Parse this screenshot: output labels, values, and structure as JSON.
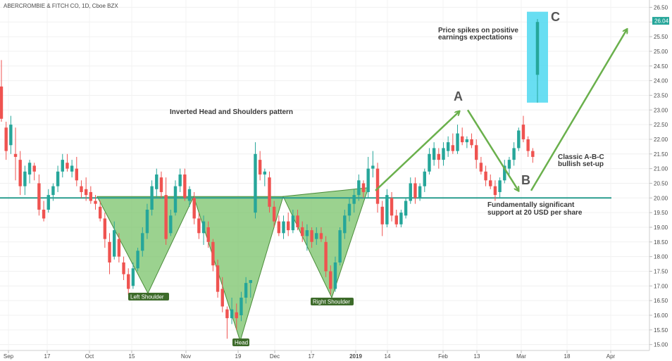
{
  "chart_data": {
    "type": "candlestick",
    "title": "ABERCROMBIE & FITCH CO, 1D, Cboe BZX",
    "y_ticks": [
      15.0,
      15.5,
      16.0,
      16.5,
      17.0,
      17.5,
      18.0,
      18.5,
      19.0,
      19.5,
      20.0,
      20.5,
      21.0,
      21.5,
      22.0,
      22.5,
      23.0,
      23.5,
      24.0,
      24.5,
      25.0,
      25.5,
      26.0,
      26.5
    ],
    "ylim": [
      14.8,
      26.75
    ],
    "current_price": "26.04",
    "x_labels": [
      "Sep",
      "17",
      "Oct",
      "15",
      "Nov",
      "19",
      "Dec",
      "17",
      "2019",
      "14",
      "Feb",
      "13",
      "Mar",
      "18",
      "Apr"
    ],
    "support_level": 20.0,
    "candles": [
      {
        "o": 23.8,
        "h": 24.7,
        "l": 22.6,
        "c": 22.7
      },
      {
        "o": 22.4,
        "h": 22.6,
        "l": 21.3,
        "c": 21.6
      },
      {
        "o": 21.8,
        "h": 22.8,
        "l": 21.5,
        "c": 22.5
      },
      {
        "o": 21.5,
        "h": 22.4,
        "l": 20.6,
        "c": 21.4
      },
      {
        "o": 21.3,
        "h": 21.6,
        "l": 20.1,
        "c": 20.4
      },
      {
        "o": 20.4,
        "h": 21.1,
        "l": 20.1,
        "c": 20.9
      },
      {
        "o": 20.8,
        "h": 21.3,
        "l": 20.5,
        "c": 21.2
      },
      {
        "o": 21.1,
        "h": 21.2,
        "l": 20.6,
        "c": 20.9
      },
      {
        "o": 20.5,
        "h": 20.8,
        "l": 19.4,
        "c": 19.6
      },
      {
        "o": 19.6,
        "h": 19.9,
        "l": 19.2,
        "c": 19.3
      },
      {
        "o": 19.6,
        "h": 20.3,
        "l": 19.5,
        "c": 20.1
      },
      {
        "o": 20.1,
        "h": 20.5,
        "l": 19.9,
        "c": 20.4
      },
      {
        "o": 20.4,
        "h": 21.1,
        "l": 20.2,
        "c": 20.9
      },
      {
        "o": 20.9,
        "h": 21.5,
        "l": 20.7,
        "c": 21.3
      },
      {
        "o": 21.2,
        "h": 21.5,
        "l": 20.9,
        "c": 21.0
      },
      {
        "o": 20.9,
        "h": 21.3,
        "l": 20.7,
        "c": 21.1
      },
      {
        "o": 21.0,
        "h": 21.4,
        "l": 20.4,
        "c": 20.6
      },
      {
        "o": 20.4,
        "h": 20.6,
        "l": 20.0,
        "c": 20.2
      },
      {
        "o": 20.3,
        "h": 20.7,
        "l": 19.9,
        "c": 20.1
      },
      {
        "o": 20.2,
        "h": 20.4,
        "l": 19.8,
        "c": 19.9
      },
      {
        "o": 19.9,
        "h": 20.1,
        "l": 19.6,
        "c": 19.8
      },
      {
        "o": 19.7,
        "h": 19.9,
        "l": 19.2,
        "c": 19.3
      },
      {
        "o": 19.3,
        "h": 19.5,
        "l": 18.3,
        "c": 18.6
      },
      {
        "o": 18.5,
        "h": 18.8,
        "l": 17.4,
        "c": 17.8
      },
      {
        "o": 18.0,
        "h": 19.2,
        "l": 17.9,
        "c": 18.9
      },
      {
        "o": 18.6,
        "h": 18.8,
        "l": 17.8,
        "c": 18.0
      },
      {
        "o": 17.8,
        "h": 18.0,
        "l": 17.2,
        "c": 17.4
      },
      {
        "o": 17.4,
        "h": 17.6,
        "l": 16.7,
        "c": 16.9
      },
      {
        "o": 17.0,
        "h": 17.8,
        "l": 16.9,
        "c": 17.6
      },
      {
        "o": 17.6,
        "h": 18.3,
        "l": 17.5,
        "c": 18.2
      },
      {
        "o": 18.2,
        "h": 19.0,
        "l": 18.0,
        "c": 18.8
      },
      {
        "o": 18.8,
        "h": 19.8,
        "l": 18.6,
        "c": 19.6
      },
      {
        "o": 19.6,
        "h": 20.6,
        "l": 19.4,
        "c": 20.4
      },
      {
        "o": 20.3,
        "h": 21.0,
        "l": 20.0,
        "c": 20.8
      },
      {
        "o": 20.7,
        "h": 20.9,
        "l": 20.0,
        "c": 20.2
      },
      {
        "o": 20.1,
        "h": 20.7,
        "l": 18.4,
        "c": 18.6
      },
      {
        "o": 18.8,
        "h": 19.6,
        "l": 18.7,
        "c": 19.4
      },
      {
        "o": 19.5,
        "h": 20.6,
        "l": 19.4,
        "c": 20.4
      },
      {
        "o": 20.4,
        "h": 21.0,
        "l": 20.2,
        "c": 20.8
      },
      {
        "o": 20.8,
        "h": 21.0,
        "l": 19.9,
        "c": 20.0
      },
      {
        "o": 19.9,
        "h": 20.4,
        "l": 19.7,
        "c": 20.3
      },
      {
        "o": 20.0,
        "h": 20.2,
        "l": 19.1,
        "c": 19.3
      },
      {
        "o": 19.3,
        "h": 19.5,
        "l": 18.6,
        "c": 18.8
      },
      {
        "o": 18.8,
        "h": 19.4,
        "l": 18.4,
        "c": 19.2
      },
      {
        "o": 19.0,
        "h": 19.2,
        "l": 18.3,
        "c": 18.5
      },
      {
        "o": 18.5,
        "h": 18.6,
        "l": 17.5,
        "c": 17.7
      },
      {
        "o": 17.7,
        "h": 17.9,
        "l": 16.6,
        "c": 16.8
      },
      {
        "o": 16.9,
        "h": 17.3,
        "l": 16.1,
        "c": 16.3
      },
      {
        "o": 16.2,
        "h": 16.3,
        "l": 15.2,
        "c": 15.9
      },
      {
        "o": 15.9,
        "h": 16.6,
        "l": 15.7,
        "c": 16.2
      },
      {
        "o": 16.1,
        "h": 16.4,
        "l": 15.5,
        "c": 15.9
      },
      {
        "o": 16.0,
        "h": 16.8,
        "l": 15.8,
        "c": 16.6
      },
      {
        "o": 16.6,
        "h": 17.3,
        "l": 16.4,
        "c": 17.1
      },
      {
        "o": 17.1,
        "h": 17.2,
        "l": 16.6,
        "c": 17.2
      },
      {
        "o": 19.5,
        "h": 21.9,
        "l": 19.3,
        "c": 21.5
      },
      {
        "o": 21.3,
        "h": 21.6,
        "l": 20.6,
        "c": 20.8
      },
      {
        "o": 20.8,
        "h": 21.0,
        "l": 20.4,
        "c": 20.9
      },
      {
        "o": 20.7,
        "h": 20.9,
        "l": 19.5,
        "c": 19.7
      },
      {
        "o": 19.7,
        "h": 19.9,
        "l": 19.0,
        "c": 19.2
      },
      {
        "o": 19.2,
        "h": 19.4,
        "l": 18.7,
        "c": 18.8
      },
      {
        "o": 18.8,
        "h": 19.4,
        "l": 18.6,
        "c": 19.2
      },
      {
        "o": 19.2,
        "h": 19.5,
        "l": 18.7,
        "c": 18.9
      },
      {
        "o": 18.9,
        "h": 19.6,
        "l": 18.8,
        "c": 19.4
      },
      {
        "o": 19.4,
        "h": 19.6,
        "l": 18.9,
        "c": 19.0
      },
      {
        "o": 19.0,
        "h": 19.2,
        "l": 18.5,
        "c": 18.7
      },
      {
        "o": 18.7,
        "h": 19.1,
        "l": 18.2,
        "c": 18.9
      },
      {
        "o": 18.9,
        "h": 19.0,
        "l": 18.3,
        "c": 18.5
      },
      {
        "o": 18.6,
        "h": 19.0,
        "l": 18.4,
        "c": 18.8
      },
      {
        "o": 18.8,
        "h": 19.0,
        "l": 18.5,
        "c": 18.6
      },
      {
        "o": 18.5,
        "h": 18.7,
        "l": 17.3,
        "c": 17.5
      },
      {
        "o": 17.5,
        "h": 17.7,
        "l": 16.7,
        "c": 16.9
      },
      {
        "o": 16.9,
        "h": 18.0,
        "l": 16.8,
        "c": 17.8
      },
      {
        "o": 17.8,
        "h": 19.0,
        "l": 17.7,
        "c": 18.9
      },
      {
        "o": 18.8,
        "h": 19.6,
        "l": 18.6,
        "c": 19.4
      },
      {
        "o": 19.4,
        "h": 20.0,
        "l": 19.2,
        "c": 19.8
      },
      {
        "o": 19.8,
        "h": 20.3,
        "l": 19.5,
        "c": 20.1
      },
      {
        "o": 20.1,
        "h": 20.8,
        "l": 19.9,
        "c": 20.6
      },
      {
        "o": 20.5,
        "h": 20.6,
        "l": 20.0,
        "c": 20.2
      },
      {
        "o": 20.2,
        "h": 21.4,
        "l": 20.0,
        "c": 21.0
      },
      {
        "o": 21.0,
        "h": 21.6,
        "l": 20.7,
        "c": 21.1
      },
      {
        "o": 21.0,
        "h": 21.2,
        "l": 19.5,
        "c": 19.8
      },
      {
        "o": 19.7,
        "h": 19.9,
        "l": 18.7,
        "c": 19.1
      },
      {
        "o": 19.1,
        "h": 20.3,
        "l": 19.0,
        "c": 20.1
      },
      {
        "o": 20.0,
        "h": 20.2,
        "l": 19.2,
        "c": 19.4
      },
      {
        "o": 19.4,
        "h": 19.6,
        "l": 19.0,
        "c": 19.1
      },
      {
        "o": 19.1,
        "h": 19.6,
        "l": 19.0,
        "c": 19.5
      },
      {
        "o": 19.4,
        "h": 20.0,
        "l": 19.3,
        "c": 19.9
      },
      {
        "o": 19.9,
        "h": 20.7,
        "l": 19.8,
        "c": 20.5
      },
      {
        "o": 20.5,
        "h": 20.7,
        "l": 19.8,
        "c": 20.0
      },
      {
        "o": 20.0,
        "h": 20.5,
        "l": 19.9,
        "c": 20.4
      },
      {
        "o": 20.4,
        "h": 21.0,
        "l": 20.2,
        "c": 20.9
      },
      {
        "o": 20.9,
        "h": 21.7,
        "l": 20.8,
        "c": 21.5
      },
      {
        "o": 21.3,
        "h": 21.9,
        "l": 21.1,
        "c": 21.7
      },
      {
        "o": 21.5,
        "h": 21.7,
        "l": 21.0,
        "c": 21.3
      },
      {
        "o": 21.3,
        "h": 21.9,
        "l": 21.1,
        "c": 21.7
      },
      {
        "o": 21.6,
        "h": 22.1,
        "l": 21.4,
        "c": 21.9
      },
      {
        "o": 21.8,
        "h": 22.2,
        "l": 21.5,
        "c": 21.6
      },
      {
        "o": 21.6,
        "h": 22.5,
        "l": 21.5,
        "c": 22.2
      },
      {
        "o": 22.1,
        "h": 22.4,
        "l": 21.8,
        "c": 21.9
      },
      {
        "o": 21.9,
        "h": 22.1,
        "l": 21.7,
        "c": 22.0
      },
      {
        "o": 22.0,
        "h": 22.2,
        "l": 21.7,
        "c": 21.8
      },
      {
        "o": 21.8,
        "h": 22.0,
        "l": 21.0,
        "c": 21.3
      },
      {
        "o": 21.2,
        "h": 21.4,
        "l": 20.8,
        "c": 20.9
      },
      {
        "o": 20.9,
        "h": 21.1,
        "l": 20.4,
        "c": 20.6
      },
      {
        "o": 20.6,
        "h": 20.8,
        "l": 20.3,
        "c": 20.4
      },
      {
        "o": 20.4,
        "h": 20.6,
        "l": 19.9,
        "c": 20.1
      },
      {
        "o": 20.2,
        "h": 20.7,
        "l": 20.0,
        "c": 20.6
      },
      {
        "o": 20.6,
        "h": 21.3,
        "l": 20.5,
        "c": 21.1
      },
      {
        "o": 21.0,
        "h": 21.4,
        "l": 20.8,
        "c": 21.3
      },
      {
        "o": 21.3,
        "h": 21.9,
        "l": 21.1,
        "c": 21.7
      },
      {
        "o": 21.7,
        "h": 22.4,
        "l": 21.6,
        "c": 22.3
      },
      {
        "o": 22.5,
        "h": 22.8,
        "l": 21.9,
        "c": 22.0
      },
      {
        "o": 22.0,
        "h": 22.1,
        "l": 21.4,
        "c": 21.6
      },
      {
        "o": 21.6,
        "h": 21.7,
        "l": 21.2,
        "c": 21.4
      },
      {
        "o": 24.2,
        "h": 26.1,
        "l": 23.9,
        "c": 26.0
      }
    ],
    "annotations": {
      "title_note": "Inverted Head and Shoulders pattern",
      "earnings_line1": "Price spikes on positive",
      "earnings_line2": "earnings expectations",
      "abc_line1": "Classic A-B-C",
      "abc_line2": "bullish set-up",
      "support_line1": "Fundamentally significant",
      "support_line2": "support at 20 USD per share",
      "letter_a": "A",
      "letter_b": "B",
      "letter_c": "C",
      "left_shoulder": "Left Shoulder",
      "head": "Head",
      "right_shoulder": "Right Shoulder"
    },
    "colors": {
      "up": "#26a69a",
      "down": "#ef5350",
      "support": "#2a9d8f",
      "pattern_fill": "#7ac36a",
      "pattern_stroke": "#4a8c3a",
      "arrow": "#6ab04c",
      "highlight": "#4dd8f0",
      "label_bg": "#3d6b2a",
      "price_badge": "#26a69a"
    }
  }
}
